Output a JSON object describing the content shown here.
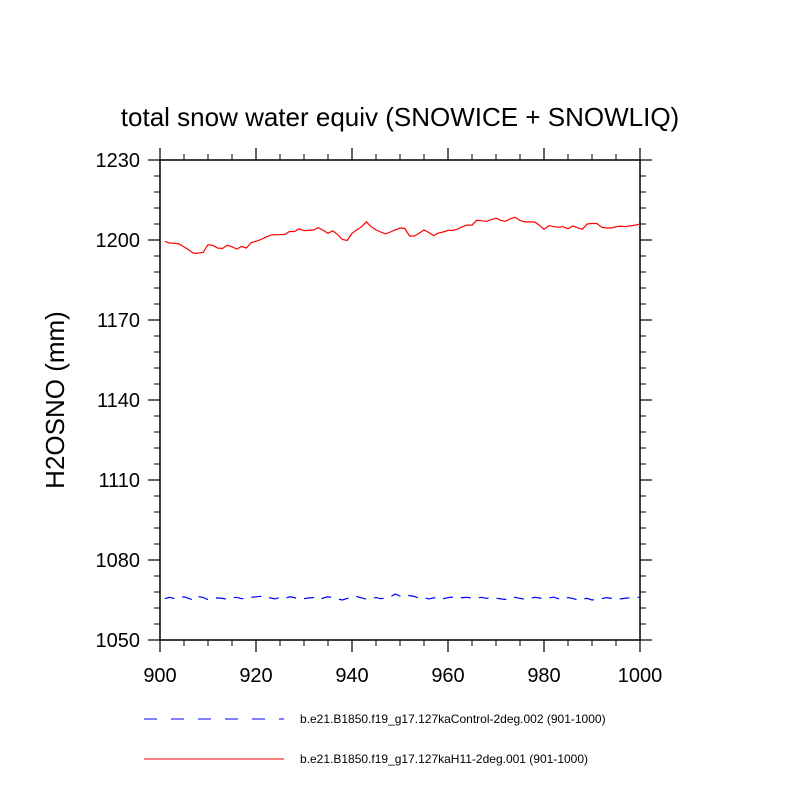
{
  "chart_data": {
    "type": "line",
    "title": "total snow water equiv (SNOWICE + SNOWLIQ)",
    "xlabel": "",
    "ylabel": "H2OSNO  (mm)",
    "xlim": [
      900,
      1000
    ],
    "ylim": [
      1050,
      1230
    ],
    "xticks": [
      900,
      920,
      940,
      960,
      980,
      1000
    ],
    "yticks": [
      1050,
      1080,
      1110,
      1140,
      1170,
      1200,
      1230
    ],
    "grid": false,
    "x": [
      901,
      902,
      903,
      904,
      905,
      906,
      907,
      908,
      909,
      910,
      911,
      912,
      913,
      914,
      915,
      916,
      917,
      918,
      919,
      920,
      921,
      922,
      923,
      924,
      925,
      926,
      927,
      928,
      929,
      930,
      931,
      932,
      933,
      934,
      935,
      936,
      937,
      938,
      939,
      940,
      941,
      942,
      943,
      944,
      945,
      946,
      947,
      948,
      949,
      950,
      951,
      952,
      953,
      954,
      955,
      956,
      957,
      958,
      959,
      960,
      961,
      962,
      963,
      964,
      965,
      966,
      967,
      968,
      969,
      970,
      971,
      972,
      973,
      974,
      975,
      976,
      977,
      978,
      979,
      980,
      981,
      982,
      983,
      984,
      985,
      986,
      987,
      988,
      989,
      990,
      991,
      992,
      993,
      994,
      995,
      996,
      997,
      998,
      999,
      1000
    ],
    "series": [
      {
        "name": "b.e21.B1850.f19_g17.127kaControl-2deg.002 (901-1000)",
        "color": "#0000ff",
        "dash": "dashed",
        "values": [
          1065.5,
          1066.0,
          1065.5,
          1065.8,
          1066.2,
          1065.6,
          1065.0,
          1066.3,
          1065.9,
          1065.2,
          1065.4,
          1065.8,
          1065.6,
          1065.3,
          1065.8,
          1066.0,
          1065.5,
          1065.6,
          1066.0,
          1066.2,
          1066.4,
          1066.0,
          1065.8,
          1065.4,
          1066.0,
          1065.6,
          1066.2,
          1065.9,
          1065.3,
          1065.5,
          1065.8,
          1065.9,
          1065.2,
          1065.7,
          1066.2,
          1065.9,
          1065.4,
          1065.0,
          1065.6,
          1065.9,
          1066.3,
          1065.8,
          1065.3,
          1065.6,
          1065.9,
          1065.5,
          1065.7,
          1066.2,
          1067.2,
          1066.5,
          1066.2,
          1066.7,
          1066.3,
          1065.6,
          1065.9,
          1065.4,
          1065.8,
          1066.0,
          1065.5,
          1065.9,
          1066.1,
          1065.6,
          1065.9,
          1066.0,
          1065.7,
          1065.8,
          1066.0,
          1065.6,
          1065.9,
          1065.7,
          1065.4,
          1065.2,
          1065.8,
          1066.0,
          1065.6,
          1065.3,
          1065.5,
          1066.0,
          1065.8,
          1065.4,
          1065.7,
          1066.1,
          1065.5,
          1065.3,
          1065.9,
          1065.6,
          1065.0,
          1065.4,
          1065.6,
          1065.0,
          1065.3,
          1065.5,
          1065.9,
          1065.6,
          1065.8,
          1065.4,
          1065.7,
          1065.8,
          1065.9,
          1066.0
        ]
      },
      {
        "name": "b.e21.B1850.f19_g17.127kaH11-2deg.001 (901-1000)",
        "color": "#ff0000",
        "dash": "solid",
        "values": [
          1199.5,
          1198.8,
          1198.8,
          1198.5,
          1197.4,
          1196.3,
          1195.0,
          1195.1,
          1195.4,
          1198.2,
          1198.0,
          1197.0,
          1196.8,
          1198.0,
          1197.5,
          1196.6,
          1197.6,
          1197.0,
          1199.0,
          1199.5,
          1200.2,
          1201.0,
          1201.8,
          1202.0,
          1202.0,
          1202.1,
          1203.2,
          1203.2,
          1204.2,
          1203.5,
          1203.6,
          1203.8,
          1204.6,
          1203.6,
          1202.5,
          1203.5,
          1202.0,
          1200.2,
          1199.8,
          1202.5,
          1203.8,
          1205.0,
          1206.8,
          1205.0,
          1203.8,
          1203.0,
          1202.3,
          1203.0,
          1203.8,
          1204.5,
          1204.3,
          1201.5,
          1201.5,
          1202.5,
          1203.8,
          1202.8,
          1201.6,
          1202.6,
          1203.0,
          1203.6,
          1203.6,
          1204.1,
          1205.0,
          1205.6,
          1205.6,
          1207.4,
          1207.2,
          1207.0,
          1207.6,
          1208.2,
          1207.4,
          1207.0,
          1208.0,
          1208.5,
          1207.3,
          1206.8,
          1206.8,
          1206.8,
          1205.6,
          1204.0,
          1205.4,
          1205.0,
          1204.8,
          1205.0,
          1204.2,
          1205.3,
          1204.6,
          1204.0,
          1206.0,
          1206.2,
          1206.2,
          1204.8,
          1204.5,
          1204.5,
          1205.0,
          1205.2,
          1205.0,
          1205.3,
          1205.6,
          1206.0
        ]
      }
    ],
    "legend_position": "bottom"
  }
}
